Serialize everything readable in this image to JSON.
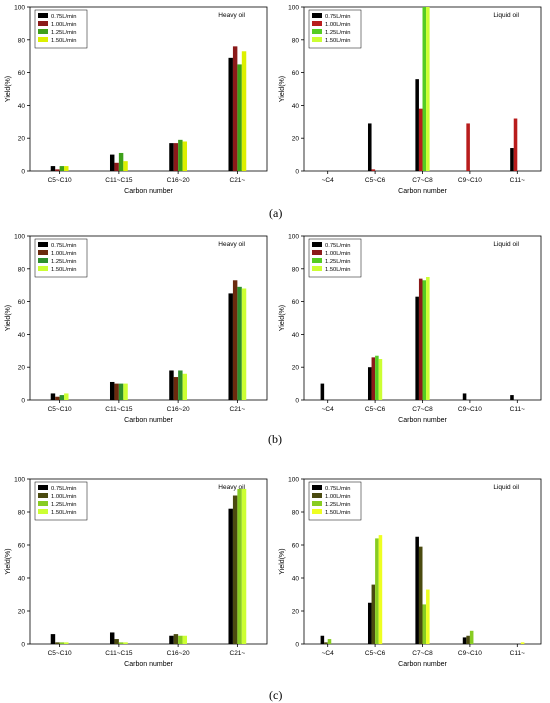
{
  "panel_labels": [
    "(a)",
    "(b)",
    "(c)"
  ],
  "charts": [
    {
      "title": "Heavy oil",
      "xlabel": "Carbon number",
      "ylabel": "Yield(%)",
      "categories": [
        "C5~C10",
        "C11~C15",
        "C16~20",
        "C21~"
      ],
      "series_names": [
        "0.75L/min",
        "1.00L/min",
        "1.25L/min",
        "1.50L/min"
      ],
      "colors": [
        "#000000",
        "#8b1a1a",
        "#3ea01a",
        "#dcf000"
      ],
      "ylim": [
        0,
        100
      ],
      "yticks": [
        0,
        20,
        40,
        60,
        80,
        100
      ]
    },
    {
      "title": "Liquid oil",
      "xlabel": "Carbon number",
      "ylabel": "Yield(%)",
      "categories": [
        "~C4",
        "C5~C6",
        "C7~C8",
        "C9~C10",
        "C11~"
      ],
      "series_names": [
        "0.75L/min",
        "1.00L/min",
        "1.25L/min",
        "1.50L/min"
      ],
      "colors": [
        "#000000",
        "#b81c1c",
        "#55cc22",
        "#ccff33"
      ],
      "ylim": [
        0,
        100
      ],
      "yticks": [
        0,
        20,
        40,
        60,
        80,
        100
      ]
    },
    {
      "title": "Heavy oil",
      "xlabel": "Carbon number",
      "ylabel": "Yield(%)",
      "categories": [
        "C5~C10",
        "C11~C15",
        "C16~20",
        "C21~"
      ],
      "series_names": [
        "0.75L/min",
        "1.00L/min",
        "1.25L/min",
        "1.50L/min"
      ],
      "colors": [
        "#000000",
        "#6b2a0e",
        "#2e8f2e",
        "#ccff33"
      ],
      "ylim": [
        0,
        100
      ],
      "yticks": [
        0,
        20,
        40,
        60,
        80,
        100
      ]
    },
    {
      "title": "Liquid oil",
      "xlabel": "Carbon number",
      "ylabel": "Yield(%)",
      "categories": [
        "~C4",
        "C5~C6",
        "C7~C8",
        "C9~C10",
        "C11~"
      ],
      "series_names": [
        "0.75L/min",
        "1.00L/min",
        "1.25L/min",
        "1.50L/min"
      ],
      "colors": [
        "#000000",
        "#8b1a1a",
        "#55cc22",
        "#ccff33"
      ],
      "ylim": [
        0,
        100
      ],
      "yticks": [
        0,
        20,
        40,
        60,
        80,
        100
      ]
    },
    {
      "title": "Heavy oil",
      "xlabel": "Carbon number",
      "ylabel": "Yield(%)",
      "categories": [
        "C5~C10",
        "C11~C15",
        "C16~20",
        "C21~"
      ],
      "series_names": [
        "0.75L/min",
        "1.00L/min",
        "1.25L/min",
        "1.50L/min"
      ],
      "colors": [
        "#000000",
        "#4a4a10",
        "#88cc22",
        "#ccff33"
      ],
      "ylim": [
        0,
        100
      ],
      "yticks": [
        0,
        20,
        40,
        60,
        80,
        100
      ]
    },
    {
      "title": "Liquid oil",
      "xlabel": "Carbon number",
      "ylabel": "Yield(%)",
      "categories": [
        "~C4",
        "C5~C6",
        "C7~C8",
        "C9~C10",
        "C11~"
      ],
      "series_names": [
        "0.75L/min",
        "1.00L/min",
        "1.25L/min",
        "1.50L/min"
      ],
      "colors": [
        "#000000",
        "#4a4a10",
        "#88cc22",
        "#eeff22"
      ],
      "ylim": [
        0,
        100
      ],
      "yticks": [
        0,
        20,
        40,
        60,
        80,
        100
      ]
    }
  ],
  "chart_data": [
    {
      "type": "bar",
      "panel": "(a)",
      "title": "Heavy oil",
      "categories": [
        "C5~C10",
        "C11~C15",
        "C16~20",
        "C21~"
      ],
      "series": [
        {
          "name": "0.75L/min",
          "values": [
            3,
            10,
            17,
            69
          ]
        },
        {
          "name": "1.00L/min",
          "values": [
            1,
            5,
            17,
            76
          ]
        },
        {
          "name": "1.25L/min",
          "values": [
            3,
            11,
            19,
            65
          ]
        },
        {
          "name": "1.50L/min",
          "values": [
            3,
            6,
            18,
            73
          ]
        }
      ],
      "xlabel": "Carbon number",
      "ylabel": "Yield(%)",
      "ylim": [
        0,
        100
      ],
      "legend": "top-left"
    },
    {
      "type": "bar",
      "panel": "(a)",
      "title": "Liquid oil",
      "categories": [
        "~C4",
        "C5~C6",
        "C7~C8",
        "C9~C10",
        "C11~"
      ],
      "series": [
        {
          "name": "0.75L/min",
          "values": [
            0,
            29,
            56,
            0,
            14
          ]
        },
        {
          "name": "1.00L/min",
          "values": [
            0,
            1,
            38,
            29,
            32
          ]
        },
        {
          "name": "1.25L/min",
          "values": [
            0,
            0,
            100,
            0,
            0
          ]
        },
        {
          "name": "1.50L/min",
          "values": [
            0,
            0,
            100,
            0,
            0
          ]
        }
      ],
      "xlabel": "Carbon number",
      "ylabel": "Yield(%)",
      "ylim": [
        0,
        100
      ],
      "legend": "top-left"
    },
    {
      "type": "bar",
      "panel": "(b)",
      "title": "Heavy oil",
      "categories": [
        "C5~C10",
        "C11~C15",
        "C16~20",
        "C21~"
      ],
      "series": [
        {
          "name": "0.75L/min",
          "values": [
            4,
            11,
            18,
            65
          ]
        },
        {
          "name": "1.00L/min",
          "values": [
            2,
            10,
            14,
            73
          ]
        },
        {
          "name": "1.25L/min",
          "values": [
            3,
            10,
            18,
            69
          ]
        },
        {
          "name": "1.50L/min",
          "values": [
            4,
            10,
            16,
            68
          ]
        }
      ],
      "xlabel": "Carbon number",
      "ylabel": "Yield(%)",
      "ylim": [
        0,
        100
      ],
      "legend": "top-left"
    },
    {
      "type": "bar",
      "panel": "(b)",
      "title": "Liquid oil",
      "categories": [
        "~C4",
        "C5~C6",
        "C7~C8",
        "C9~C10",
        "C11~"
      ],
      "series": [
        {
          "name": "0.75L/min",
          "values": [
            10,
            20,
            63,
            4,
            3
          ]
        },
        {
          "name": "1.00L/min",
          "values": [
            0,
            26,
            74,
            0,
            0
          ]
        },
        {
          "name": "1.25L/min",
          "values": [
            0,
            27,
            73,
            0,
            0
          ]
        },
        {
          "name": "1.50L/min",
          "values": [
            0,
            25,
            75,
            0,
            0
          ]
        }
      ],
      "xlabel": "Carbon number",
      "ylabel": "Yield(%)",
      "ylim": [
        0,
        100
      ],
      "legend": "top-left"
    },
    {
      "type": "bar",
      "panel": "(c)",
      "title": "Heavy oil",
      "categories": [
        "C5~C10",
        "C11~C15",
        "C16~20",
        "C21~"
      ],
      "series": [
        {
          "name": "0.75L/min",
          "values": [
            6,
            7,
            5,
            82
          ]
        },
        {
          "name": "1.00L/min",
          "values": [
            1,
            3,
            6,
            90
          ]
        },
        {
          "name": "1.25L/min",
          "values": [
            1,
            1,
            5,
            94
          ]
        },
        {
          "name": "1.50L/min",
          "values": [
            1,
            1,
            5,
            94
          ]
        }
      ],
      "xlabel": "Carbon number",
      "ylabel": "Yield(%)",
      "ylim": [
        0,
        100
      ],
      "legend": "top-left"
    },
    {
      "type": "bar",
      "panel": "(c)",
      "title": "Liquid oil",
      "categories": [
        "~C4",
        "C5~C6",
        "C7~C8",
        "C9~C10",
        "C11~"
      ],
      "series": [
        {
          "name": "0.75L/min",
          "values": [
            5,
            25,
            65,
            4,
            0
          ]
        },
        {
          "name": "1.00L/min",
          "values": [
            1,
            36,
            59,
            5,
            0
          ]
        },
        {
          "name": "1.25L/min",
          "values": [
            3,
            64,
            24,
            8,
            0
          ]
        },
        {
          "name": "1.50L/min",
          "values": [
            0,
            66,
            33,
            0,
            1
          ]
        }
      ],
      "xlabel": "Carbon number",
      "ylabel": "Yield(%)",
      "ylim": [
        0,
        100
      ],
      "legend": "top-left"
    }
  ]
}
